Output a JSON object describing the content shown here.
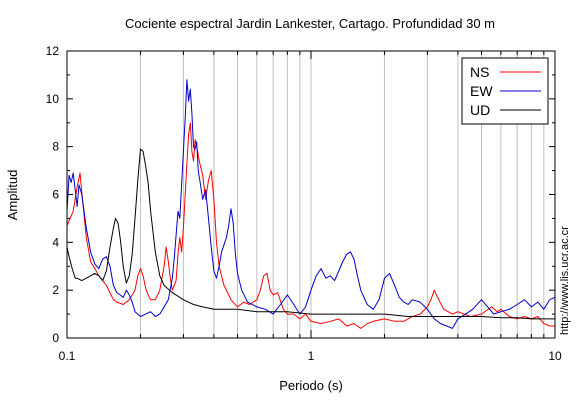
{
  "chart_data": {
    "type": "line",
    "title": "Cociente espectral Jardin Lankester, Cartago. Profundidad 30 m",
    "xlabel": "Periodo (s)",
    "ylabel": "Amplitud",
    "xscale": "log",
    "xlim": [
      0.1,
      10
    ],
    "ylim": [
      0,
      12
    ],
    "grid": "vertical",
    "legend_position": "top-right",
    "x_ticks": [
      {
        "value": 0.1,
        "label": "0.1"
      },
      {
        "value": 1,
        "label": "1"
      },
      {
        "value": 10,
        "label": "10"
      }
    ],
    "y_ticks": [
      {
        "value": 0,
        "label": "0"
      },
      {
        "value": 2,
        "label": "2"
      },
      {
        "value": 4,
        "label": "4"
      },
      {
        "value": 6,
        "label": "6"
      },
      {
        "value": 8,
        "label": "8"
      },
      {
        "value": 10,
        "label": "10"
      },
      {
        "value": 12,
        "label": "12"
      }
    ],
    "series": [
      {
        "name": "NS",
        "color": "#ff0000",
        "points": [
          [
            0.1,
            4.7
          ],
          [
            0.103,
            5.0
          ],
          [
            0.106,
            5.3
          ],
          [
            0.11,
            6.3
          ],
          [
            0.113,
            6.9
          ],
          [
            0.116,
            5.7
          ],
          [
            0.12,
            4.2
          ],
          [
            0.125,
            3.2
          ],
          [
            0.13,
            2.9
          ],
          [
            0.135,
            2.6
          ],
          [
            0.14,
            2.4
          ],
          [
            0.145,
            2.2
          ],
          [
            0.15,
            1.9
          ],
          [
            0.155,
            1.6
          ],
          [
            0.16,
            1.5
          ],
          [
            0.17,
            1.4
          ],
          [
            0.18,
            1.6
          ],
          [
            0.19,
            2.0
          ],
          [
            0.195,
            2.6
          ],
          [
            0.2,
            2.9
          ],
          [
            0.205,
            2.6
          ],
          [
            0.21,
            2.1
          ],
          [
            0.215,
            1.8
          ],
          [
            0.22,
            1.6
          ],
          [
            0.23,
            1.6
          ],
          [
            0.24,
            2.0
          ],
          [
            0.25,
            3.0
          ],
          [
            0.255,
            3.8
          ],
          [
            0.26,
            3.2
          ],
          [
            0.265,
            2.5
          ],
          [
            0.27,
            2.0
          ],
          [
            0.28,
            2.4
          ],
          [
            0.285,
            3.5
          ],
          [
            0.29,
            4.2
          ],
          [
            0.295,
            3.6
          ],
          [
            0.3,
            4.6
          ],
          [
            0.305,
            6.0
          ],
          [
            0.31,
            7.3
          ],
          [
            0.315,
            8.5
          ],
          [
            0.32,
            9.0
          ],
          [
            0.325,
            7.8
          ],
          [
            0.33,
            7.4
          ],
          [
            0.335,
            8.3
          ],
          [
            0.34,
            8.0
          ],
          [
            0.35,
            7.3
          ],
          [
            0.36,
            6.8
          ],
          [
            0.37,
            5.8
          ],
          [
            0.38,
            6.6
          ],
          [
            0.39,
            7.0
          ],
          [
            0.4,
            5.8
          ],
          [
            0.41,
            4.0
          ],
          [
            0.42,
            3.0
          ],
          [
            0.44,
            2.2
          ],
          [
            0.47,
            1.6
          ],
          [
            0.5,
            1.3
          ],
          [
            0.53,
            1.5
          ],
          [
            0.56,
            1.4
          ],
          [
            0.6,
            1.6
          ],
          [
            0.62,
            2.0
          ],
          [
            0.64,
            2.6
          ],
          [
            0.66,
            2.7
          ],
          [
            0.68,
            2.0
          ],
          [
            0.7,
            1.8
          ],
          [
            0.73,
            1.9
          ],
          [
            0.77,
            1.2
          ],
          [
            0.8,
            1.0
          ],
          [
            0.85,
            1.0
          ],
          [
            0.9,
            0.8
          ],
          [
            0.95,
            1.0
          ],
          [
            1.0,
            0.7
          ],
          [
            1.1,
            0.6
          ],
          [
            1.2,
            0.7
          ],
          [
            1.3,
            0.8
          ],
          [
            1.4,
            0.5
          ],
          [
            1.5,
            0.6
          ],
          [
            1.6,
            0.4
          ],
          [
            1.7,
            0.6
          ],
          [
            1.8,
            0.7
          ],
          [
            2.0,
            0.8
          ],
          [
            2.2,
            0.7
          ],
          [
            2.4,
            0.7
          ],
          [
            2.6,
            0.9
          ],
          [
            2.8,
            1.0
          ],
          [
            3.0,
            1.3
          ],
          [
            3.1,
            1.6
          ],
          [
            3.2,
            2.0
          ],
          [
            3.3,
            1.7
          ],
          [
            3.5,
            1.2
          ],
          [
            3.8,
            1.0
          ],
          [
            4.0,
            1.1
          ],
          [
            4.5,
            0.9
          ],
          [
            5.0,
            1.0
          ],
          [
            5.5,
            1.3
          ],
          [
            5.8,
            1.1
          ],
          [
            6.0,
            1.2
          ],
          [
            6.5,
            0.9
          ],
          [
            7.0,
            0.8
          ],
          [
            7.5,
            0.9
          ],
          [
            8.0,
            0.8
          ],
          [
            8.5,
            0.9
          ],
          [
            9.0,
            0.6
          ],
          [
            9.5,
            0.5
          ],
          [
            10.0,
            0.5
          ]
        ]
      },
      {
        "name": "EW",
        "color": "#0000cc",
        "points": [
          [
            0.1,
            5.3
          ],
          [
            0.102,
            6.8
          ],
          [
            0.104,
            6.5
          ],
          [
            0.106,
            6.9
          ],
          [
            0.108,
            6.2
          ],
          [
            0.11,
            5.5
          ],
          [
            0.112,
            6.4
          ],
          [
            0.115,
            6.0
          ],
          [
            0.12,
            4.6
          ],
          [
            0.125,
            3.6
          ],
          [
            0.13,
            3.1
          ],
          [
            0.135,
            2.9
          ],
          [
            0.14,
            3.3
          ],
          [
            0.145,
            3.4
          ],
          [
            0.15,
            3.0
          ],
          [
            0.155,
            2.2
          ],
          [
            0.16,
            1.9
          ],
          [
            0.165,
            1.8
          ],
          [
            0.17,
            1.7
          ],
          [
            0.175,
            2.0
          ],
          [
            0.18,
            1.8
          ],
          [
            0.185,
            1.5
          ],
          [
            0.19,
            1.1
          ],
          [
            0.2,
            0.9
          ],
          [
            0.21,
            1.0
          ],
          [
            0.22,
            1.1
          ],
          [
            0.23,
            0.9
          ],
          [
            0.24,
            1.0
          ],
          [
            0.25,
            1.3
          ],
          [
            0.26,
            1.6
          ],
          [
            0.27,
            2.5
          ],
          [
            0.275,
            3.3
          ],
          [
            0.28,
            4.3
          ],
          [
            0.285,
            5.3
          ],
          [
            0.29,
            5.0
          ],
          [
            0.295,
            6.4
          ],
          [
            0.3,
            7.8
          ],
          [
            0.305,
            9.2
          ],
          [
            0.31,
            10.8
          ],
          [
            0.315,
            9.9
          ],
          [
            0.32,
            10.4
          ],
          [
            0.325,
            9.4
          ],
          [
            0.33,
            8.0
          ],
          [
            0.335,
            7.9
          ],
          [
            0.34,
            8.2
          ],
          [
            0.345,
            7.0
          ],
          [
            0.35,
            6.6
          ],
          [
            0.36,
            5.8
          ],
          [
            0.37,
            6.2
          ],
          [
            0.38,
            5.0
          ],
          [
            0.39,
            3.8
          ],
          [
            0.4,
            2.8
          ],
          [
            0.41,
            2.5
          ],
          [
            0.42,
            3.0
          ],
          [
            0.43,
            3.6
          ],
          [
            0.44,
            3.9
          ],
          [
            0.45,
            4.2
          ],
          [
            0.46,
            4.7
          ],
          [
            0.47,
            5.4
          ],
          [
            0.48,
            4.8
          ],
          [
            0.49,
            3.5
          ],
          [
            0.5,
            2.7
          ],
          [
            0.52,
            2.0
          ],
          [
            0.55,
            1.5
          ],
          [
            0.6,
            1.3
          ],
          [
            0.65,
            1.2
          ],
          [
            0.7,
            1.0
          ],
          [
            0.75,
            1.4
          ],
          [
            0.8,
            1.8
          ],
          [
            0.85,
            1.4
          ],
          [
            0.9,
            1.0
          ],
          [
            0.95,
            1.3
          ],
          [
            1.0,
            2.0
          ],
          [
            1.05,
            2.6
          ],
          [
            1.1,
            2.9
          ],
          [
            1.15,
            2.5
          ],
          [
            1.2,
            2.6
          ],
          [
            1.25,
            2.4
          ],
          [
            1.3,
            2.8
          ],
          [
            1.35,
            3.2
          ],
          [
            1.4,
            3.5
          ],
          [
            1.45,
            3.6
          ],
          [
            1.5,
            3.3
          ],
          [
            1.55,
            2.6
          ],
          [
            1.6,
            2.0
          ],
          [
            1.7,
            1.4
          ],
          [
            1.8,
            1.2
          ],
          [
            1.9,
            1.6
          ],
          [
            2.0,
            2.5
          ],
          [
            2.1,
            2.7
          ],
          [
            2.2,
            2.2
          ],
          [
            2.3,
            1.7
          ],
          [
            2.4,
            1.5
          ],
          [
            2.5,
            1.4
          ],
          [
            2.6,
            1.6
          ],
          [
            2.8,
            1.5
          ],
          [
            3.0,
            1.2
          ],
          [
            3.2,
            0.8
          ],
          [
            3.4,
            0.6
          ],
          [
            3.6,
            0.5
          ],
          [
            3.8,
            0.4
          ],
          [
            4.0,
            0.8
          ],
          [
            4.3,
            1.0
          ],
          [
            4.6,
            1.2
          ],
          [
            5.0,
            1.6
          ],
          [
            5.3,
            1.3
          ],
          [
            5.6,
            1.0
          ],
          [
            6.0,
            1.1
          ],
          [
            6.5,
            1.2
          ],
          [
            7.0,
            1.4
          ],
          [
            7.5,
            1.6
          ],
          [
            8.0,
            1.3
          ],
          [
            8.5,
            1.5
          ],
          [
            9.0,
            1.2
          ],
          [
            9.5,
            1.6
          ],
          [
            10.0,
            1.7
          ]
        ]
      },
      {
        "name": "UD",
        "color": "#000000",
        "points": [
          [
            0.1,
            3.8
          ],
          [
            0.102,
            3.4
          ],
          [
            0.105,
            2.9
          ],
          [
            0.108,
            2.5
          ],
          [
            0.11,
            2.5
          ],
          [
            0.115,
            2.4
          ],
          [
            0.12,
            2.5
          ],
          [
            0.125,
            2.6
          ],
          [
            0.13,
            2.7
          ],
          [
            0.135,
            2.6
          ],
          [
            0.14,
            2.4
          ],
          [
            0.145,
            2.8
          ],
          [
            0.15,
            3.8
          ],
          [
            0.155,
            4.6
          ],
          [
            0.158,
            5.0
          ],
          [
            0.162,
            4.8
          ],
          [
            0.166,
            4.0
          ],
          [
            0.17,
            3.0
          ],
          [
            0.175,
            2.3
          ],
          [
            0.18,
            2.6
          ],
          [
            0.185,
            3.5
          ],
          [
            0.19,
            5.0
          ],
          [
            0.195,
            6.6
          ],
          [
            0.2,
            7.9
          ],
          [
            0.205,
            7.8
          ],
          [
            0.21,
            7.2
          ],
          [
            0.215,
            6.5
          ],
          [
            0.22,
            5.3
          ],
          [
            0.23,
            3.6
          ],
          [
            0.24,
            2.6
          ],
          [
            0.25,
            2.2
          ],
          [
            0.27,
            1.9
          ],
          [
            0.3,
            1.6
          ],
          [
            0.33,
            1.4
          ],
          [
            0.36,
            1.3
          ],
          [
            0.4,
            1.2
          ],
          [
            0.45,
            1.2
          ],
          [
            0.5,
            1.2
          ],
          [
            0.6,
            1.1
          ],
          [
            0.7,
            1.1
          ],
          [
            0.8,
            1.1
          ],
          [
            1.0,
            1.0
          ],
          [
            1.2,
            1.0
          ],
          [
            1.5,
            1.0
          ],
          [
            2.0,
            1.0
          ],
          [
            2.5,
            0.9
          ],
          [
            3.0,
            0.9
          ],
          [
            4.0,
            0.9
          ],
          [
            5.0,
            0.9
          ],
          [
            6.0,
            0.85
          ],
          [
            7.0,
            0.85
          ],
          [
            8.0,
            0.8
          ],
          [
            9.0,
            0.8
          ],
          [
            10.0,
            0.8
          ]
        ]
      }
    ]
  },
  "credit": "http://www.lis.ucr.ac.cr"
}
